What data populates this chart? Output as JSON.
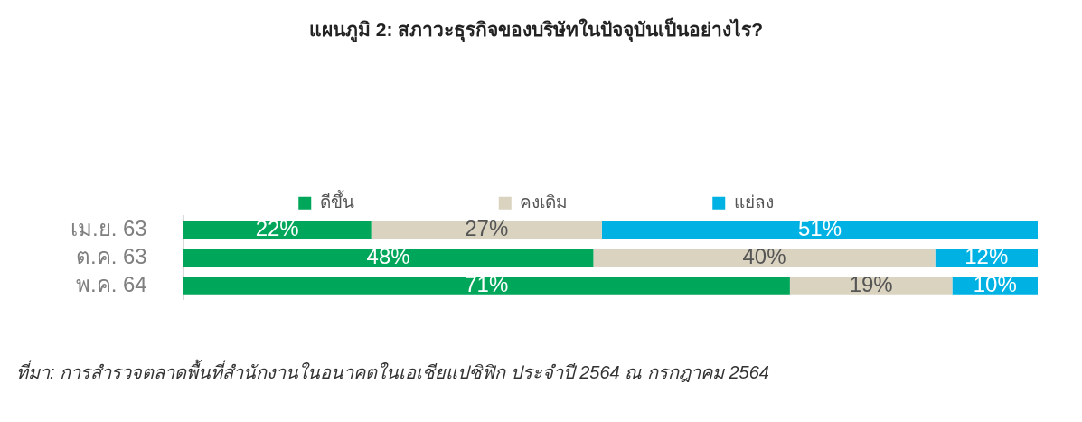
{
  "chart_data": {
    "type": "bar",
    "orientation": "horizontal",
    "stacked": true,
    "title": "แผนภูมิ 2: สภาวะธุรกิจของบริษัทในปัจจุบันเป็นอย่างไร?",
    "categories": [
      "เม.ย. 63",
      "ต.ค. 63",
      "พ.ค. 64"
    ],
    "series": [
      {
        "name": "ดีขึ้น",
        "color": "#00a65a",
        "values": [
          22,
          48,
          71
        ],
        "value_labels": [
          "22%",
          "48%",
          "71%"
        ]
      },
      {
        "name": "คงเดิม",
        "color": "#d9d3c0",
        "values": [
          27,
          40,
          19
        ],
        "value_labels": [
          "27%",
          "40%",
          "19%"
        ]
      },
      {
        "name": "แย่ลง",
        "color": "#00b2e3",
        "values": [
          51,
          12,
          10
        ],
        "value_labels": [
          "51%",
          "12%",
          "10%"
        ]
      }
    ],
    "xlim": [
      0,
      100
    ],
    "legend": "top",
    "grid": false,
    "tick_labels": "y",
    "annotations": [
      "ที่มา: การสำรวจตลาดพื้นที่สำนักงานในอนาคตในเอเชียแปซิฟิก ประจำปี 2564 ณ กรกฎาคม 2564"
    ]
  }
}
